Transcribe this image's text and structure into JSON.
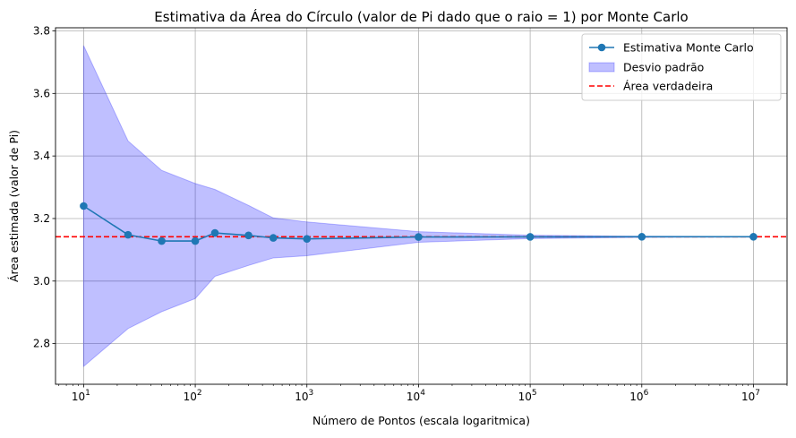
{
  "chart_data": {
    "type": "line",
    "title": "Estimativa da Área do Círculo (valor de Pi dado que o raio = 1) por Monte Carlo",
    "xlabel": "Número de Pontos (escala logaritmica)",
    "ylabel": "Área estimada (valor de Pi)",
    "x_scale": "log",
    "xlim": [
      5.6,
      20000000
    ],
    "ylim": [
      2.67,
      3.81
    ],
    "grid": true,
    "legend_position": "top-right",
    "x_ticks": [
      {
        "value": 10,
        "base": "10",
        "exp": "1"
      },
      {
        "value": 100,
        "base": "10",
        "exp": "2"
      },
      {
        "value": 1000,
        "base": "10",
        "exp": "3"
      },
      {
        "value": 10000,
        "base": "10",
        "exp": "4"
      },
      {
        "value": 100000,
        "base": "10",
        "exp": "5"
      },
      {
        "value": 1000000,
        "base": "10",
        "exp": "6"
      },
      {
        "value": 10000000,
        "base": "10",
        "exp": "7"
      }
    ],
    "y_ticks": [
      "2.8",
      "3.0",
      "3.2",
      "3.4",
      "3.6",
      "3.8"
    ],
    "series": [
      {
        "name": "Estimativa Monte Carlo",
        "color": "#1f77b4",
        "x": [
          10,
          25,
          50,
          100,
          150,
          300,
          500,
          1000,
          10000,
          100000,
          1000000,
          10000000
        ],
        "values": [
          3.24,
          3.148,
          3.128,
          3.128,
          3.154,
          3.146,
          3.138,
          3.135,
          3.141,
          3.1413,
          3.1416,
          3.1416
        ]
      }
    ],
    "band": {
      "name": "Desvio padrão",
      "color": "#0000ff",
      "x": [
        10,
        25,
        50,
        100,
        150,
        300,
        500,
        1000,
        10000,
        100000,
        1000000,
        10000000
      ],
      "lower": [
        2.727,
        2.848,
        2.902,
        2.944,
        3.015,
        3.05,
        3.074,
        3.081,
        3.124,
        3.1359,
        3.1399,
        3.141
      ],
      "upper": [
        3.753,
        3.448,
        3.354,
        3.312,
        3.293,
        3.242,
        3.202,
        3.189,
        3.158,
        3.1467,
        3.1433,
        3.1422
      ]
    },
    "reference_line": {
      "name": "Área verdadeira",
      "value": 3.14159,
      "color": "#ff0000"
    }
  }
}
